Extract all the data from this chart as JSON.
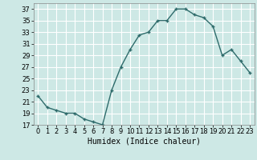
{
  "x": [
    0,
    1,
    2,
    3,
    4,
    5,
    6,
    7,
    8,
    9,
    10,
    11,
    12,
    13,
    14,
    15,
    16,
    17,
    18,
    19,
    20,
    21,
    22,
    23
  ],
  "y": [
    22,
    20,
    19.5,
    19,
    19,
    18,
    17.5,
    17,
    23,
    27,
    30,
    32.5,
    33,
    35,
    35,
    37,
    37,
    36,
    35.5,
    34,
    29,
    30,
    28,
    26
  ],
  "line_color": "#2e6b6b",
  "marker": "+",
  "marker_size": 3,
  "linewidth": 1.0,
  "xlabel": "Humidex (Indice chaleur)",
  "xlabel_fontsize": 7,
  "bg_color": "#cde8e5",
  "grid_color": "#ffffff",
  "ylim": [
    17,
    38
  ],
  "yticks": [
    17,
    19,
    21,
    23,
    25,
    27,
    29,
    31,
    33,
    35,
    37
  ],
  "xticks": [
    0,
    1,
    2,
    3,
    4,
    5,
    6,
    7,
    8,
    9,
    10,
    11,
    12,
    13,
    14,
    15,
    16,
    17,
    18,
    19,
    20,
    21,
    22,
    23
  ],
  "xlim": [
    -0.5,
    23.5
  ],
  "tick_fontsize": 6
}
